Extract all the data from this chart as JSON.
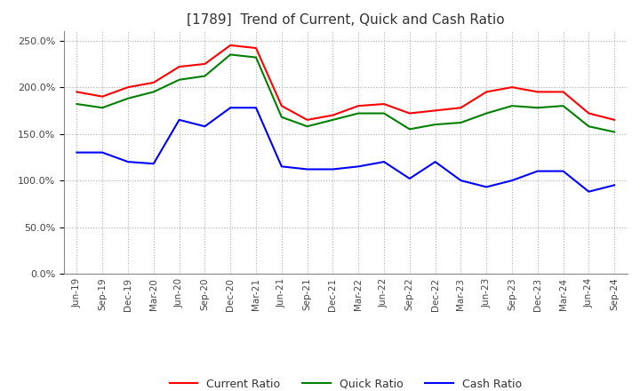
{
  "title": "[1789]  Trend of Current, Quick and Cash Ratio",
  "x_labels": [
    "Jun-19",
    "Sep-19",
    "Dec-19",
    "Mar-20",
    "Jun-20",
    "Sep-20",
    "Dec-20",
    "Mar-21",
    "Jun-21",
    "Sep-21",
    "Dec-21",
    "Mar-22",
    "Jun-22",
    "Sep-22",
    "Dec-22",
    "Mar-23",
    "Jun-23",
    "Sep-23",
    "Dec-23",
    "Mar-24",
    "Jun-24",
    "Sep-24"
  ],
  "current_ratio": [
    1.95,
    1.9,
    2.0,
    2.05,
    2.22,
    2.25,
    2.45,
    2.42,
    1.8,
    1.65,
    1.7,
    1.8,
    1.82,
    1.72,
    1.75,
    1.78,
    1.95,
    2.0,
    1.95,
    1.95,
    1.72,
    1.65
  ],
  "quick_ratio": [
    1.82,
    1.78,
    1.88,
    1.95,
    2.08,
    2.12,
    2.35,
    2.32,
    1.68,
    1.58,
    1.65,
    1.72,
    1.72,
    1.55,
    1.6,
    1.62,
    1.72,
    1.8,
    1.78,
    1.8,
    1.58,
    1.52
  ],
  "cash_ratio": [
    1.3,
    1.3,
    1.2,
    1.18,
    1.65,
    1.58,
    1.78,
    1.78,
    1.15,
    1.12,
    1.12,
    1.15,
    1.2,
    1.02,
    1.2,
    1.0,
    0.93,
    1.0,
    1.1,
    1.1,
    0.88,
    0.95
  ],
  "current_color": "#FF0000",
  "quick_color": "#008000",
  "cash_color": "#0000FF",
  "background_color": "#ffffff",
  "grid_color": "#aaaaaa"
}
